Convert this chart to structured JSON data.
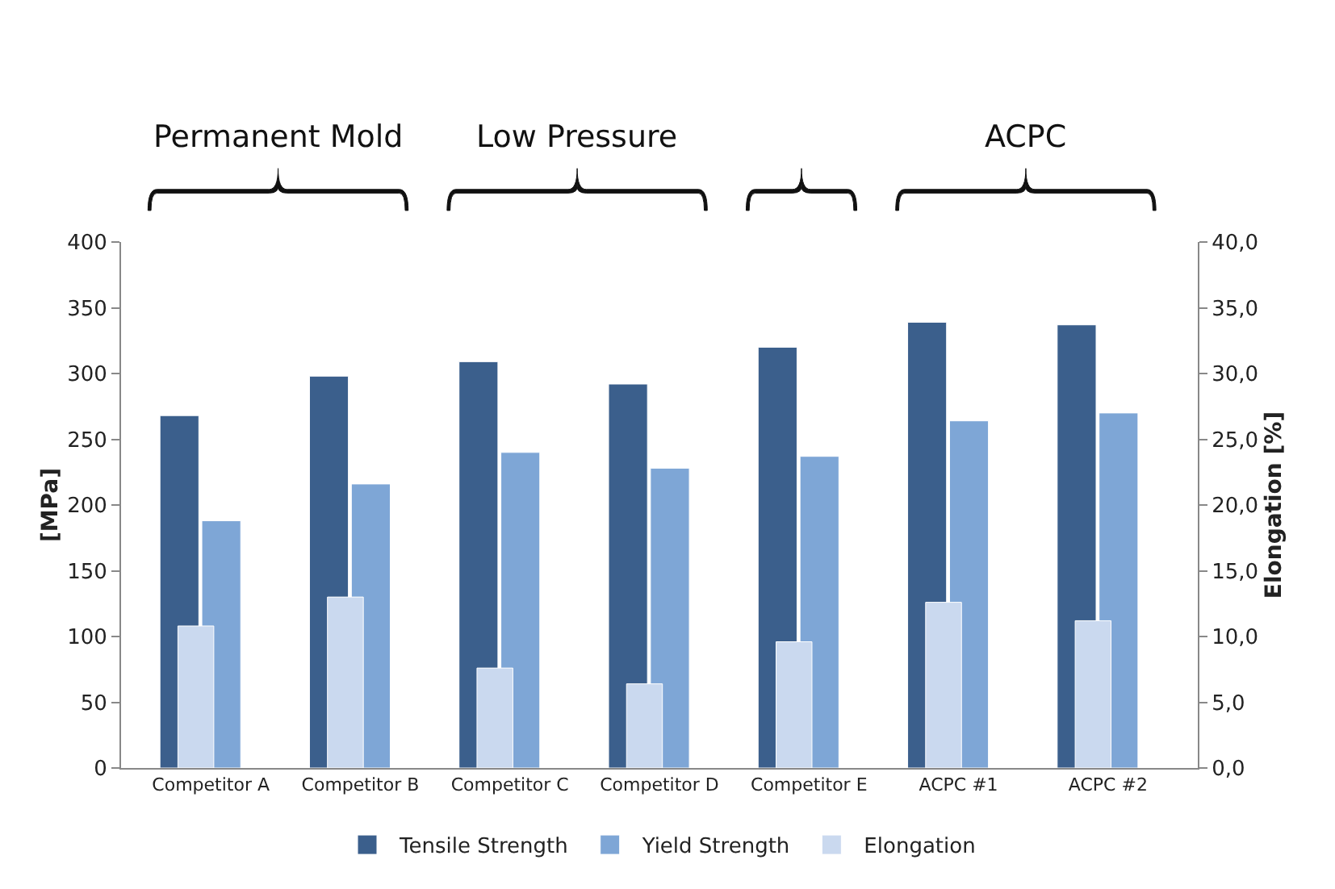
{
  "chart_data": {
    "type": "bar",
    "categories": [
      "Competitor A",
      "Competitor B",
      "Competitor C",
      "Competitor D",
      "Competitor E",
      "ACPC #1",
      "ACPC #2"
    ],
    "series": [
      {
        "name": "Tensile Strength",
        "color": "#3b5f8c",
        "values": [
          268,
          298,
          309,
          292,
          320,
          339,
          337
        ]
      },
      {
        "name": "Yield Strength",
        "color": "#7ea6d6",
        "values": [
          188,
          216,
          240,
          228,
          237,
          264,
          270
        ]
      },
      {
        "name": "Elongation",
        "color": "#cad9ef",
        "axis": "y2",
        "values": [
          10.8,
          13.0,
          7.6,
          6.4,
          9.6,
          12.6,
          11.2
        ]
      }
    ],
    "ylabel": "[MPa]",
    "y2label": "Elongation [%]",
    "ylim": [
      0,
      400
    ],
    "yticks": [
      0,
      50,
      100,
      150,
      200,
      250,
      300,
      350,
      400
    ],
    "y2lim": [
      0,
      40
    ],
    "y2ticks": [
      {
        "value": 0,
        "label": "0,0"
      },
      {
        "value": 5,
        "label": "5,0"
      },
      {
        "value": 10,
        "label": "10,0"
      },
      {
        "value": 15,
        "label": "15,0"
      },
      {
        "value": 20,
        "label": "20,0"
      },
      {
        "value": 25,
        "label": "25,0"
      },
      {
        "value": 30,
        "label": "30,0"
      },
      {
        "value": 35,
        "label": "35,0"
      },
      {
        "value": 40,
        "label": "40,0"
      }
    ],
    "annotations": [
      "Permanent Mold",
      "Low Pressure",
      "ACPC"
    ],
    "grid": false,
    "legend": "bottom"
  }
}
